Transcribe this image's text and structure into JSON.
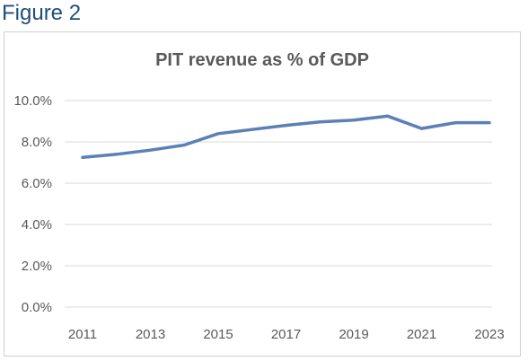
{
  "figure_label": "Figure 2",
  "chart_data": {
    "type": "line",
    "title": "PIT revenue as % of GDP",
    "xlabel": "",
    "ylabel": "",
    "x": [
      2011,
      2012,
      2013,
      2014,
      2015,
      2016,
      2017,
      2018,
      2019,
      2020,
      2021,
      2022,
      2023
    ],
    "series": [
      {
        "values": [
          7.25,
          7.4,
          7.6,
          7.85,
          8.4,
          8.6,
          8.8,
          8.97,
          9.05,
          9.25,
          8.65,
          8.93,
          8.93
        ]
      }
    ],
    "ylim": [
      0,
      10
    ],
    "y_ticks": [
      "0.0%",
      "2.0%",
      "4.0%",
      "6.0%",
      "8.0%",
      "10.0%"
    ],
    "y_tick_values": [
      0,
      2,
      4,
      6,
      8,
      10
    ],
    "x_ticks": [
      "2011",
      "2013",
      "2015",
      "2017",
      "2019",
      "2021",
      "2023"
    ],
    "x_tick_values": [
      2011,
      2013,
      2015,
      2017,
      2019,
      2021,
      2023
    ],
    "grid": "horizontal",
    "legend": "none",
    "line_color": "#5b80b8",
    "grid_color": "#d9d9d9"
  }
}
